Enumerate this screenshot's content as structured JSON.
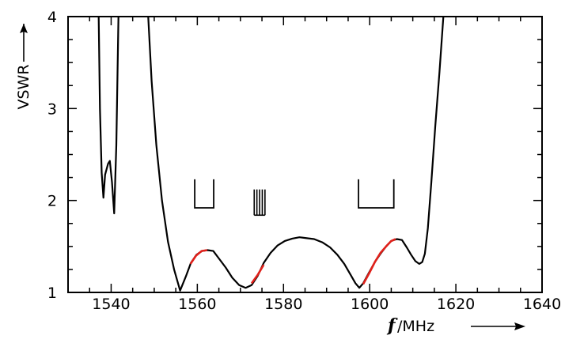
{
  "chart_data": {
    "type": "line",
    "title": "",
    "xlabel": {
      "italic": "f",
      "rest": "/MHz"
    },
    "ylabel": "VSWR",
    "xlim": [
      1530,
      1640
    ],
    "ylim": [
      1,
      4
    ],
    "xticks": [
      1540,
      1560,
      1580,
      1600,
      1620,
      1640
    ],
    "xtick_labels": [
      "1540",
      "1560",
      "1580",
      "1600",
      "1620",
      "1640"
    ],
    "yticks": [
      1,
      2,
      3,
      4
    ],
    "ytick_labels": [
      "1",
      "2",
      "3",
      "4"
    ],
    "grid": false,
    "legend": "none",
    "colors": {
      "curve": "#000000",
      "highlight": "#e0201a"
    },
    "series": [
      {
        "color": "#000000",
        "points": [
          [
            1537.1,
            4.0
          ],
          [
            1537.4,
            3.0
          ],
          [
            1537.8,
            2.3
          ],
          [
            1538.2,
            2.03
          ],
          [
            1538.6,
            2.28
          ],
          [
            1539.3,
            2.4
          ],
          [
            1539.7,
            2.43
          ],
          [
            1540.2,
            2.2
          ],
          [
            1540.7,
            1.86
          ],
          [
            1541.2,
            2.6
          ],
          [
            1541.7,
            4.0
          ]
        ]
      },
      {
        "color": "#000000",
        "points": [
          [
            1548.6,
            4.0
          ],
          [
            1549.4,
            3.3
          ],
          [
            1550.5,
            2.6
          ],
          [
            1551.8,
            2.0
          ],
          [
            1553.2,
            1.55
          ],
          [
            1554.6,
            1.25
          ],
          [
            1556.0,
            1.02
          ],
          [
            1557.3,
            1.17
          ],
          [
            1558.5,
            1.32
          ],
          [
            1559.8,
            1.41
          ],
          [
            1561.1,
            1.45
          ],
          [
            1562.4,
            1.46
          ],
          [
            1563.7,
            1.45
          ],
          [
            1565.0,
            1.37
          ],
          [
            1566.6,
            1.27
          ],
          [
            1568.1,
            1.16
          ],
          [
            1569.7,
            1.08
          ],
          [
            1571.2,
            1.05
          ],
          [
            1572.6,
            1.08
          ],
          [
            1574.0,
            1.18
          ],
          [
            1575.4,
            1.32
          ],
          [
            1577.0,
            1.43
          ],
          [
            1578.6,
            1.51
          ],
          [
            1580.3,
            1.56
          ],
          [
            1582.0,
            1.585
          ],
          [
            1583.7,
            1.6
          ],
          [
            1585.4,
            1.59
          ],
          [
            1587.1,
            1.58
          ],
          [
            1589.0,
            1.545
          ],
          [
            1590.8,
            1.49
          ],
          [
            1592.5,
            1.41
          ],
          [
            1594.1,
            1.31
          ],
          [
            1595.6,
            1.19
          ],
          [
            1596.7,
            1.1
          ],
          [
            1597.6,
            1.05
          ],
          [
            1598.5,
            1.1
          ],
          [
            1599.9,
            1.22
          ],
          [
            1601.2,
            1.33
          ],
          [
            1602.5,
            1.42
          ],
          [
            1603.8,
            1.5
          ],
          [
            1605.0,
            1.56
          ],
          [
            1606.3,
            1.58
          ],
          [
            1607.5,
            1.57
          ],
          [
            1608.6,
            1.49
          ],
          [
            1609.6,
            1.41
          ],
          [
            1610.6,
            1.34
          ],
          [
            1611.5,
            1.31
          ],
          [
            1612.2,
            1.33
          ],
          [
            1612.8,
            1.42
          ],
          [
            1613.5,
            1.7
          ],
          [
            1614.3,
            2.2
          ],
          [
            1615.2,
            2.8
          ],
          [
            1616.2,
            3.4
          ],
          [
            1617.1,
            4.0
          ]
        ]
      }
    ],
    "highlights": [
      {
        "color": "#e0201a",
        "points": [
          [
            1558.4,
            1.31
          ],
          [
            1559.7,
            1.4
          ],
          [
            1561.0,
            1.45
          ],
          [
            1562.3,
            1.46
          ]
        ]
      },
      {
        "color": "#e0201a",
        "points": [
          [
            1572.6,
            1.1
          ],
          [
            1574.0,
            1.19
          ],
          [
            1575.4,
            1.3
          ]
        ]
      },
      {
        "color": "#e0201a",
        "points": [
          [
            1598.5,
            1.09
          ],
          [
            1599.9,
            1.21
          ],
          [
            1601.2,
            1.33
          ],
          [
            1602.5,
            1.43
          ],
          [
            1603.8,
            1.5
          ],
          [
            1605.0,
            1.56
          ],
          [
            1606.0,
            1.58
          ]
        ]
      }
    ],
    "band_markers": [
      {
        "shape": "bracket",
        "x_start": 1559.4,
        "x_end": 1563.8,
        "y_top": 2.23,
        "y_bottom": 1.92
      },
      {
        "shape": "comb",
        "x_start": 1573.2,
        "x_end": 1575.7,
        "y_top": 2.12,
        "y_bottom": 1.84,
        "count": 5
      },
      {
        "shape": "bracket",
        "x_start": 1597.4,
        "x_end": 1605.6,
        "y_top": 2.23,
        "y_bottom": 1.92
      }
    ]
  }
}
